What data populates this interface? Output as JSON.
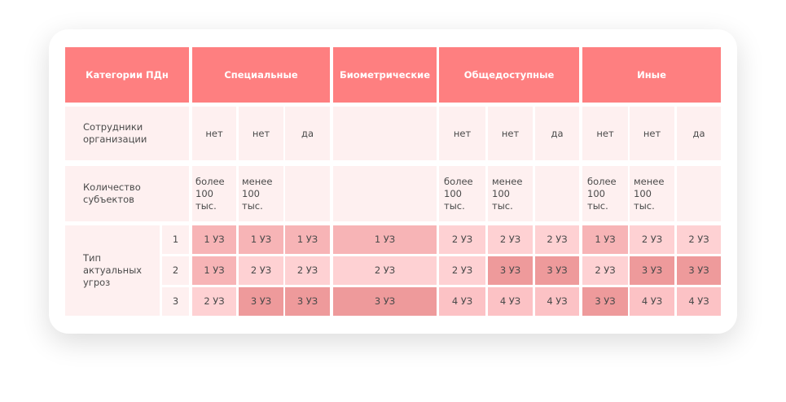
{
  "header": {
    "categories": "Категории ПДн",
    "special": "Специальные",
    "biometric": "Биометрические",
    "public": "Общедоступные",
    "other": "Иные"
  },
  "rows": {
    "employees": "Сотрудники организации",
    "subjects_count": "Количество субъектов",
    "threat_type": "Тип актуальных угроз"
  },
  "values": {
    "no": "нет",
    "yes": "да",
    "more_100k": "более 100 тыс.",
    "less_100k": "менее 100 тыс."
  },
  "threat_levels": [
    "1",
    "2",
    "3"
  ],
  "protection": {
    "special": [
      [
        "1 УЗ",
        "1 УЗ",
        "1 УЗ"
      ],
      [
        "1 УЗ",
        "2 УЗ",
        "2 УЗ"
      ],
      [
        "2 УЗ",
        "3 УЗ",
        "3 УЗ"
      ]
    ],
    "biometric": [
      "1 УЗ",
      "2 УЗ",
      "3 УЗ"
    ],
    "public": [
      [
        "2 УЗ",
        "2 УЗ",
        "2 УЗ"
      ],
      [
        "2 УЗ",
        "3 УЗ",
        "3 УЗ"
      ],
      [
        "4 УЗ",
        "4 УЗ",
        "4 УЗ"
      ]
    ],
    "other": [
      [
        "1 УЗ",
        "2 УЗ",
        "2 УЗ"
      ],
      [
        "2 УЗ",
        "3 УЗ",
        "3 УЗ"
      ],
      [
        "3 УЗ",
        "4 УЗ",
        "4 УЗ"
      ]
    ]
  },
  "colors": {
    "header": "#fe7f80",
    "pale": "#fef0f0",
    "shade_1": "#fed1d3",
    "shade_2": "#fcc2c5",
    "shade_3": "#f7b4b6",
    "shade_4": "#ee9a9b"
  }
}
